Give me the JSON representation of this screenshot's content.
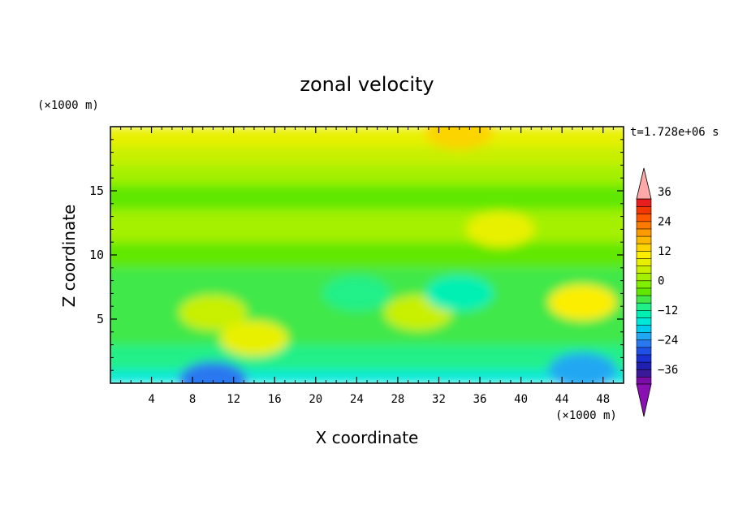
{
  "chart_data": {
    "type": "heatmap",
    "title": "zonal velocity",
    "xlabel": "X coordinate",
    "ylabel": "Z coordinate",
    "x_unit": "(×1000 m)",
    "y_unit": "(×1000 m)",
    "time_label": "t=1.728e+06 s",
    "xlim": [
      0,
      50
    ],
    "ylim": [
      0,
      20
    ],
    "x_ticks": [
      4,
      8,
      12,
      16,
      20,
      24,
      28,
      32,
      36,
      40,
      44,
      48
    ],
    "y_ticks": [
      5,
      10,
      15
    ],
    "colorbar": {
      "levels": [
        -42,
        -39,
        -36,
        -33,
        -30,
        -27,
        -24,
        -21,
        -18,
        -15,
        -12,
        -9,
        -6,
        -3,
        0,
        3,
        6,
        9,
        12,
        15,
        18,
        21,
        24,
        27,
        30,
        33,
        36,
        39,
        42
      ],
      "tick_labels": [
        "36",
        "24",
        "12",
        "0",
        "-12",
        "-24",
        "-36"
      ],
      "tick_values": [
        36,
        24,
        12,
        0,
        -12,
        -24,
        -36
      ],
      "colors": [
        "#7a0ca8",
        "#3a1a9a",
        "#2020b0",
        "#1a30d0",
        "#1e50e6",
        "#2a78f0",
        "#20a8f2",
        "#00ccee",
        "#00e8d8",
        "#00f0b4",
        "#20f088",
        "#40e848",
        "#60e800",
        "#80f000",
        "#a4f000",
        "#c8f000",
        "#e8f000",
        "#fcee00",
        "#fcd400",
        "#fcb800",
        "#fc9a00",
        "#fc7a00",
        "#fc5800",
        "#f03800",
        "#e81e1e",
        "#ffa8a8"
      ],
      "over_color": "#ffa8a8",
      "under_color": "#8a10b4"
    },
    "field": {
      "description_ref": "zonal velocity field u(x,z)",
      "bands": [
        {
          "z_range": [
            18.5,
            20
          ],
          "value": 6
        },
        {
          "z_range": [
            17,
            18.5
          ],
          "value": 3
        },
        {
          "z_range": [
            15.5,
            17
          ],
          "value": 0
        },
        {
          "z_range": [
            13.5,
            15.5
          ],
          "value": -6
        },
        {
          "z_range": [
            11,
            13.5
          ],
          "value": 1
        },
        {
          "z_range": [
            9,
            11
          ],
          "value": -4
        },
        {
          "z_range": [
            3,
            9
          ],
          "value": -7
        },
        {
          "z_range": [
            1,
            3
          ],
          "value": -12
        },
        {
          "z_range": [
            0,
            1
          ],
          "value": -18
        }
      ],
      "features": [
        {
          "x": 34,
          "z": 19.6,
          "value": 12
        },
        {
          "x": 10,
          "z": 5.5,
          "value": 4
        },
        {
          "x": 14,
          "z": 3.5,
          "value": 6
        },
        {
          "x": 46,
          "z": 6.3,
          "value": 10
        },
        {
          "x": 30,
          "z": 5.5,
          "value": 4
        },
        {
          "x": 34,
          "z": 7,
          "value": -14
        },
        {
          "x": 10,
          "z": 0.3,
          "value": -27
        },
        {
          "x": 46,
          "z": 1,
          "value": -22
        },
        {
          "x": 38,
          "z": 12,
          "value": 6
        },
        {
          "x": 24,
          "z": 7,
          "value": -12
        }
      ]
    }
  }
}
